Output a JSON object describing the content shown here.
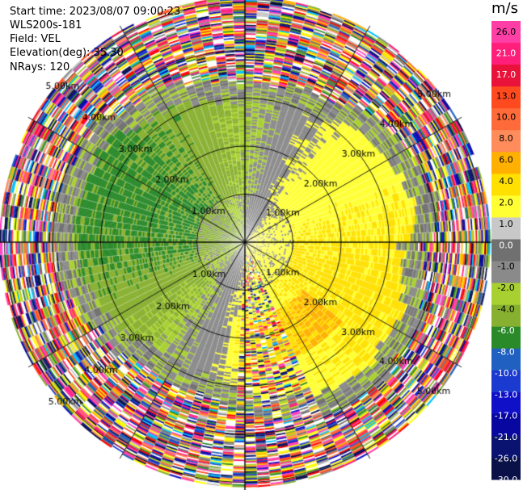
{
  "header": {
    "start_time": "Start time: 2023/08/07 09:00:23",
    "instrument": "WLS200s-181",
    "field": "Field: VEL",
    "elevation": "Elevation(deg): 35.30",
    "nrays": "NRays: 120"
  },
  "colorbar": {
    "unit": "m/s",
    "ticks": [
      "26.0",
      "21.0",
      "17.0",
      "13.0",
      "10.0",
      "8.0",
      "6.0",
      "4.0",
      "2.0",
      "1.0",
      "0.0",
      "-1.0",
      "-2.0",
      "-4.0",
      "-6.0",
      "-8.0",
      "-10.0",
      "-13.0",
      "-17.0",
      "-21.0",
      "-26.0",
      "-30.0"
    ],
    "colors": [
      "#ff3fa5",
      "#ff1f7a",
      "#e8123a",
      "#ff4a1f",
      "#ff6a3a",
      "#ff8c5a",
      "#ffb000",
      "#ffe000",
      "#ffff33",
      "#c8c8c8",
      "#707070",
      "#8a8a8a",
      "#a8d030",
      "#88b030",
      "#2a8a2a",
      "#2060c0",
      "#1a3ad0",
      "#1010c8",
      "#0808a0",
      "#0a1470",
      "#0a1048"
    ]
  },
  "chart_data": {
    "type": "heatmap",
    "projection": "polar (plan position indicator)",
    "field": "VEL",
    "units": "m/s",
    "n_rays": 120,
    "elevation_deg": 35.3,
    "range_ring_labels": [
      "1.00km",
      "2.00km",
      "3.00km",
      "4.00km",
      "5.00km"
    ],
    "color_scale": {
      "min": -30.0,
      "max": 26.0,
      "boundaries": [
        26.0,
        21.0,
        17.0,
        13.0,
        10.0,
        8.0,
        6.0,
        4.0,
        2.0,
        1.0,
        0.0,
        -1.0,
        -2.0,
        -4.0,
        -6.0,
        -8.0,
        -10.0,
        -13.0,
        -17.0,
        -21.0,
        -26.0,
        -30.0
      ]
    },
    "observed_pattern": {
      "0-1km": "mixed: gray/olive near center, yellow to the east",
      "1-3km": "negative (green, ~-2 to -6 m/s) to the west/north-west; positive (yellow/orange, ~2 to 6 m/s) to the east/south-east",
      "3-4km": "transition ring, gray/olive (~0 to -2 m/s)",
      "4-5km": "noisy, all colors (unfiltered)"
    }
  }
}
